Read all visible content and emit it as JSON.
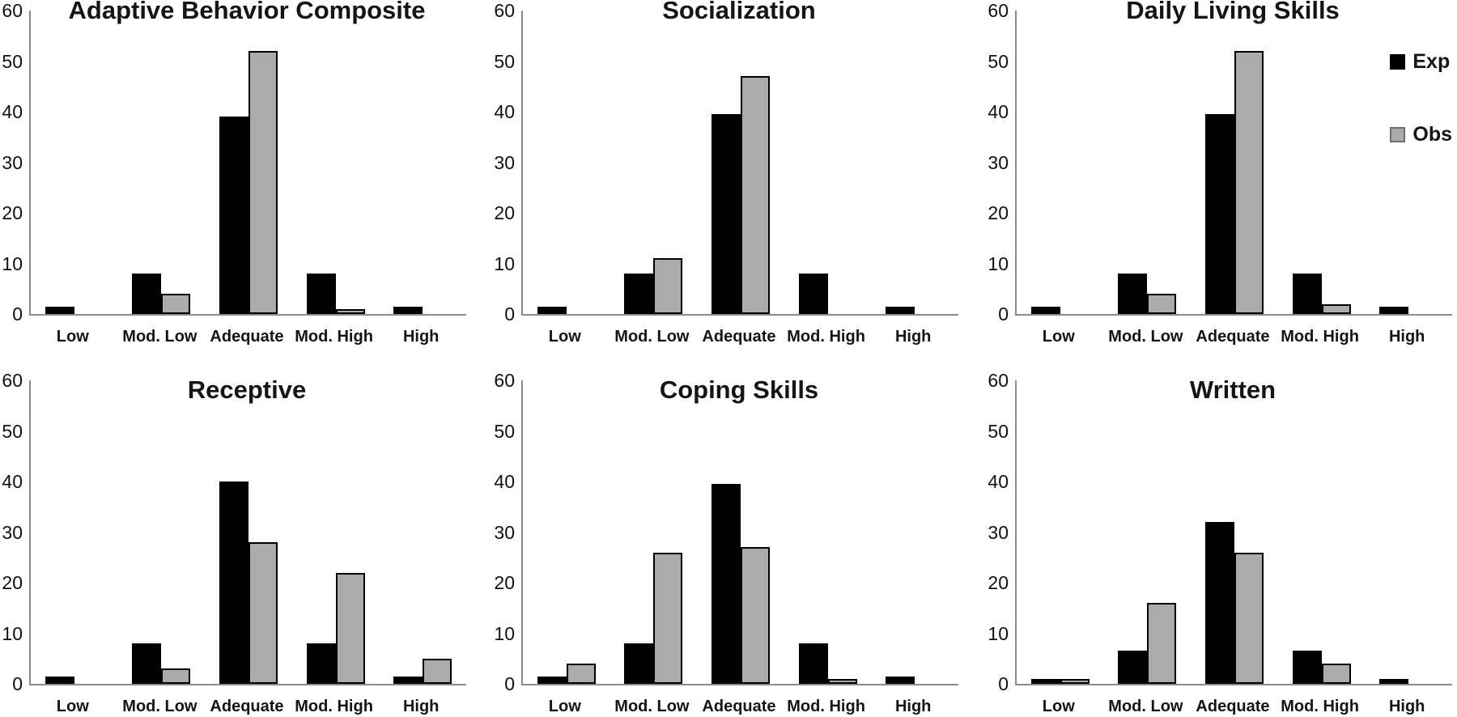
{
  "figure": {
    "background": "#ffffff",
    "axis_color": "#8c8c8c",
    "series_colors": {
      "Exp": "#000000",
      "Obs": "#ababab"
    }
  },
  "legend": {
    "position": "top-right-of-third-panel",
    "items": [
      {
        "label": "Exp",
        "color": "#000000"
      },
      {
        "label": "Obs",
        "color": "#ababab"
      }
    ]
  },
  "chart_data": [
    {
      "type": "bar",
      "title": "Adaptive Behavior Composite",
      "categories": [
        "Low",
        "Mod. Low",
        "Adequate",
        "Mod. High",
        "High"
      ],
      "series": [
        {
          "name": "Exp",
          "color": "#000000",
          "values": [
            1.5,
            8,
            39,
            8,
            1.5
          ]
        },
        {
          "name": "Obs",
          "color": "#ababab",
          "values": [
            0,
            4,
            52,
            1,
            0
          ]
        }
      ],
      "xlabel": "",
      "ylabel": "",
      "ylim": [
        0,
        60
      ],
      "yticks": [
        0,
        10,
        20,
        30,
        40,
        50,
        60
      ],
      "grid": false,
      "legend_position": "none"
    },
    {
      "type": "bar",
      "title": "Socialization",
      "categories": [
        "Low",
        "Mod. Low",
        "Adequate",
        "Mod. High",
        "High"
      ],
      "series": [
        {
          "name": "Exp",
          "color": "#000000",
          "values": [
            1.5,
            8,
            39.5,
            8,
            1.5
          ]
        },
        {
          "name": "Obs",
          "color": "#ababab",
          "values": [
            0,
            11,
            47,
            0,
            0
          ]
        }
      ],
      "xlabel": "",
      "ylabel": "",
      "ylim": [
        0,
        60
      ],
      "yticks": [
        0,
        10,
        20,
        30,
        40,
        50,
        60
      ],
      "grid": false,
      "legend_position": "none"
    },
    {
      "type": "bar",
      "title": "Daily Living Skills",
      "categories": [
        "Low",
        "Mod. Low",
        "Adequate",
        "Mod. High",
        "High"
      ],
      "series": [
        {
          "name": "Exp",
          "color": "#000000",
          "values": [
            1.5,
            8,
            39.5,
            8,
            1.5
          ]
        },
        {
          "name": "Obs",
          "color": "#ababab",
          "values": [
            0,
            4,
            52,
            2,
            0
          ]
        }
      ],
      "xlabel": "",
      "ylabel": "",
      "ylim": [
        0,
        60
      ],
      "yticks": [
        0,
        10,
        20,
        30,
        40,
        50,
        60
      ],
      "grid": false,
      "legend_position": "top-right"
    },
    {
      "type": "bar",
      "title": "Receptive",
      "categories": [
        "Low",
        "Mod. Low",
        "Adequate",
        "Mod. High",
        "High"
      ],
      "series": [
        {
          "name": "Exp",
          "color": "#000000",
          "values": [
            1.5,
            8,
            40,
            8,
            1.5
          ]
        },
        {
          "name": "Obs",
          "color": "#ababab",
          "values": [
            0,
            3,
            28,
            22,
            5
          ]
        }
      ],
      "xlabel": "",
      "ylabel": "",
      "ylim": [
        0,
        60
      ],
      "yticks": [
        0,
        10,
        20,
        30,
        40,
        50,
        60
      ],
      "grid": false,
      "legend_position": "none"
    },
    {
      "type": "bar",
      "title": "Coping Skills",
      "categories": [
        "Low",
        "Mod. Low",
        "Adequate",
        "Mod. High",
        "High"
      ],
      "series": [
        {
          "name": "Exp",
          "color": "#000000",
          "values": [
            1.5,
            8,
            39.5,
            8,
            1.5
          ]
        },
        {
          "name": "Obs",
          "color": "#ababab",
          "values": [
            4,
            26,
            27,
            1,
            0
          ]
        }
      ],
      "xlabel": "",
      "ylabel": "",
      "ylim": [
        0,
        60
      ],
      "yticks": [
        0,
        10,
        20,
        30,
        40,
        50,
        60
      ],
      "grid": false,
      "legend_position": "none"
    },
    {
      "type": "bar",
      "title": "Written",
      "categories": [
        "Low",
        "Mod. Low",
        "Adequate",
        "Mod. High",
        "High"
      ],
      "series": [
        {
          "name": "Exp",
          "color": "#000000",
          "values": [
            1,
            6.5,
            32,
            6.5,
            1
          ]
        },
        {
          "name": "Obs",
          "color": "#ababab",
          "values": [
            1,
            16,
            26,
            4,
            0
          ]
        }
      ],
      "xlabel": "",
      "ylabel": "",
      "ylim": [
        0,
        60
      ],
      "yticks": [
        0,
        10,
        20,
        30,
        40,
        50,
        60
      ],
      "grid": false,
      "legend_position": "none"
    }
  ]
}
